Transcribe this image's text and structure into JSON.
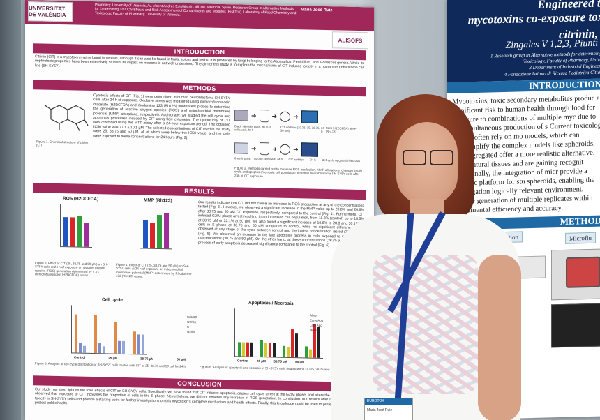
{
  "left_poster": {
    "university": "UNIVERSITAT DE VALÈNCIA",
    "partner_logo": "ALISOFS",
    "affiliation_text": "Pharmacy, University of Valencia, Av. Vicent Andrés Estellés s/n, 46100, Valencia, Spain. Research Group in Alternative Methods for Determining TOXICS Effects and Risk Assessment of Contaminants and Mixtures (RiskTox), Laboratory of Food Chemistry and Toxicology, Faculty of Pharmacy, University of Valencia.",
    "author_fragment": "María José Ruiz",
    "sections": {
      "intro": "INTRODUCTION",
      "methods": "METHODS",
      "results": "RESULTS",
      "conclusion": "CONCLUSION"
    },
    "intro_text": "Citrinin (CIT) is a mycotoxin mainly found in cereals, although it can also be found in fruits, spices and herbs. It is produced by fungi belonging to the Aspergillus, Penicillium, and Monascus genera. While its nephrotoxic properties have been extensively studied, its impact on neurons is not well understood. The aim of this study is to explore the mechanisms of CIT-induced toxicity in a human neuroblastoma cell line (SH-SY5Y).",
    "methods_text": "Cytotoxic effects of CIT (Fig. 1) were determined in human neuroblastoma SH-SY5Y cells after 24 h of exposure. Oxidative stress was measured using dichlorofluorescein diacetate (H2DCFDA) and rhodamine 123 (Rh123) fluorescent probes to determine the generation of reactive oxygen species (ROS) and mitochondrial membrane potential (MMP) alterations, respectively. Additionally, we studied the cell cycle and apoptosis processes induced by CIT using flow cytometry. The cytotoxicity of CIT was assessed using the MTT assay after a 24-hour exposure period. The obtained IC50 value was 77.1 ± 10.1 µM. The selected concentrations of CIT used in the study were 25, 38.75 and 50 µM, all of which were below the IC50 value, and the cells were exposed to these concentrations for 24 hours (Fig. 2).",
    "fig1_caption": "Figure 1. Chemical structure of citrinin (CIT)",
    "fig2_caption": "Figure 2. Methods carried out to measure ROS production, MMP alterations, changes in cell cycle and apoptosis/necrosis cell population in human neuroblastoma SH-SY5Y cells after 24h of CIT exposure.",
    "method_steps_row1": [
      "Black 96 wells plate, 30,000 cells/well, 48 h",
      "CIT addition (19.38, 25, 38.75, 50 µM)",
      "24 h",
      "ROS (H2DCFDA) MMP (Rh123)"
    ],
    "method_steps_row2": [
      "6 wells plate, 700,000 cells/well, 24 h",
      "CIT addition",
      "24 h",
      "Cell cycle Apoptosis/Necrosis"
    ],
    "chart_ros_title": "ROS (H2DCFDA)",
    "chart_mmp_title": "MMP (Rh123)",
    "chart_ylabel": "Fluorescence relative to control",
    "chart_cellcycle_title": "Cell cycle",
    "chart_apoptosis_title": "Apoptosis / Necrosis",
    "cellcycle_legend": [
      "SubG0",
      "G0/G1",
      "S",
      "G2/M"
    ],
    "apoptosis_legend": [
      "Alive",
      "Early Apo",
      "Late Apo",
      "Necro"
    ],
    "chart_xcats": [
      "Control",
      "25 µM",
      "38.75 µM",
      "50 µM"
    ],
    "results_text": "Our results indicate that CIT did not cause an increase in ROS production at any of the concentrations tested (Fig. 3). However, we observed a significant increase in the MMP value up to 20.8% and 26.6% after 38.75 and 50 µM CIT exposure, respectively, compared to the control (Fig. 4). Furthermore, CIT induced G2/M phase arrest resulting in an increased cell population, from 11.8% (control) up to 18.5% at 38.75 µM or 33.1% at 50 µM. We also found a significant increase of 19.8% to 28.8 and 30.1%) in cells in S phase at 38.75 and 50 µM compared to control, while no significant differences were observed at any stage of the cycle between control and the lowest concentration tested (25 µM CIT) (Fig. 5). We observed an increase in the late apoptosis process in cells exposed to CIT at higher concentrations (38.75 and 50 µM). On the other hand, at these concentrations (38.75 and 50 µM), the process of early apoptosis decreased significantly compared to the control (Fig. 6).",
    "fig3_caption": "Figure 3. Effect of CIT (25, 38.75 and 50 µM) on SH-SY5Y cells at 24 h of exposure on reactive oxygen species (ROS) generation determined by 2',7'-dichlorofluorescein (H2DCFDA) assay.",
    "fig4_caption": "Figure 4. Effect of CIT (25, 38.75 and 50 µM) on SH-SY5Y cells at 24 h of exposure on mitochondrial membrane potential (MMP) determined by Rhodamine 123 (Rh123) assay.",
    "fig5_caption": "Figure 5. Analysis of cell-cycle distribution of SH-SY5Y cells treated with CIT at 25, 38.75 and 50 µM for 24 h.",
    "fig6_caption": "Figure 6. Analysis of apoptosis and necrosis in SH-SY5Y cells treated with CIT (25, 38.75 and 50 µM) for 24 h.",
    "conclusion_text": "Our study has shed light on the toxic effects of CIT on SH-SY5Y cells. Specifically, we have found that CIT induces apoptosis, causes cell cycle arrest at the G2/M phase, and alters the MMP. In addition, we observed that exposure to CIT increases the proportion of cells in the S phase. Nevertheless, we did not observe any increase in ROS generation. In conclusion, our results offer new insights into CIT toxicity in SH-SY5Y cells and provide a starting point for further investigations on this mycotoxin's complete mechanism and health effects. Finally, this knowledge could be used to protect human health and protect public health."
  },
  "right_poster": {
    "title_line1": "Engineered th",
    "title_line2": "mycotoxins co-exposure toxi",
    "title_line3": "citrinin, o",
    "authors": "Zingales V 1,2,3, Piunti C",
    "aff1": "1 Research group in Alternative methods for determining to",
    "aff2": "Toxicology, Faculty of Pharmacy, Universi",
    "aff3": "3 Department of Industrial Engineering",
    "aff4": "4 Fondazione Istituto di Ricerca Pediatrica Città De",
    "intro_label": "INTRODUCTION",
    "intro_text": "Mycotoxins, toxic secondary metabolites produc a significant risk to human health through food for exposure to combinations of multiple myc due to the simultaneous production of s Current toxicology studies often rely on mo models, which can oversimplify the complex models like spheroids, self-aggregated offer a more realistic alternative. They natural tissues and are gaining recognit Additionally, the integration of micr provide a dynamic platform for stu spheroids, enabling the investigation logically relevant environment. Moreov generation of multiple replicates within experimental efficiency and accuracy.",
    "methods_label": "METHOD",
    "sub_production": "production",
    "sub_microfluidic": "Microflu"
  },
  "badge": {
    "event": "EUROTOX",
    "name": "Maria José Ruiz"
  }
}
